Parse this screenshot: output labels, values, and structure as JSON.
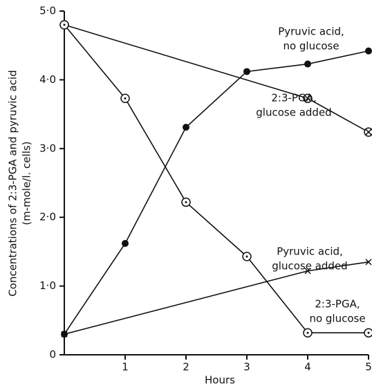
{
  "chart_data": {
    "type": "line",
    "xlabel": "Hours",
    "ylabel": [
      "Concentrations of 2:3-PGA and pyruvic acid",
      "(m-mole/l. cells)"
    ],
    "xlim": [
      0,
      5
    ],
    "xticks": [
      1,
      2,
      3,
      4,
      5
    ],
    "ylim": [
      0,
      5
    ],
    "yticks": [
      0,
      {
        "value": 1,
        "label": "1·0"
      },
      {
        "value": 2,
        "label": "2·0"
      },
      {
        "value": 3,
        "label": "3·0"
      },
      {
        "value": 4,
        "label": "4·0"
      },
      {
        "value": 5,
        "label": "5·0"
      }
    ],
    "series": [
      {
        "name": [
          "Pyruvic acid,",
          "no glucose"
        ],
        "color": "#111111",
        "marker": "filled",
        "x": [
          0,
          1,
          2,
          3,
          4,
          5
        ],
        "values": [
          0.3,
          1.62,
          3.31,
          4.12,
          4.23,
          4.42
        ]
      },
      {
        "name": [
          "2:3-PGA,",
          "glucose added"
        ],
        "color": "#111111",
        "marker": "crossed",
        "x": [
          0,
          4,
          5
        ],
        "values": [
          4.8,
          3.73,
          3.24
        ]
      },
      {
        "name": [
          "Pyruvic acid,",
          "glucose added"
        ],
        "color": "#111111",
        "marker": "x",
        "x": [
          0,
          4,
          5
        ],
        "values": [
          0.3,
          1.22,
          1.35
        ]
      },
      {
        "name": [
          "2:3-PGA,",
          "no glucose"
        ],
        "color": "#111111",
        "marker": "dotted",
        "x": [
          0,
          1,
          2,
          3,
          4,
          5
        ],
        "values": [
          4.8,
          3.73,
          2.22,
          1.43,
          0.32,
          0.32
        ]
      }
    ]
  }
}
